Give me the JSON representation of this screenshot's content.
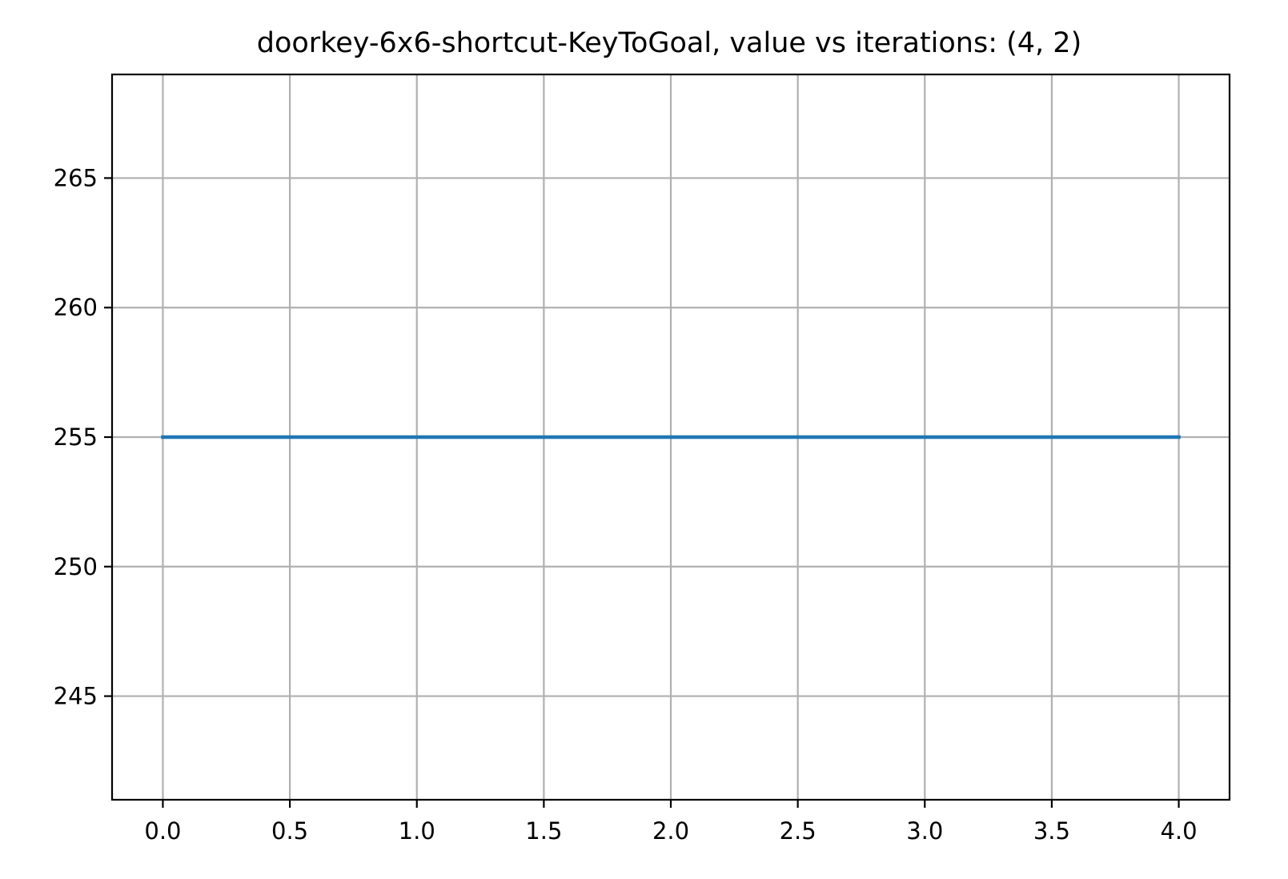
{
  "chart_data": {
    "type": "line",
    "title": "doorkey-6x6-shortcut-KeyToGoal, value vs iterations: (4, 2)",
    "xlabel": "",
    "ylabel": "",
    "xlim": [
      -0.2,
      4.2
    ],
    "ylim": [
      241,
      269
    ],
    "xticks": [
      0.0,
      0.5,
      1.0,
      1.5,
      2.0,
      2.5,
      3.0,
      3.5,
      4.0
    ],
    "xtick_labels": [
      "0.0",
      "0.5",
      "1.0",
      "1.5",
      "2.0",
      "2.5",
      "3.0",
      "3.5",
      "4.0"
    ],
    "yticks": [
      245,
      250,
      255,
      260,
      265
    ],
    "ytick_labels": [
      "245",
      "250",
      "255",
      "260",
      "265"
    ],
    "grid": true,
    "series": [
      {
        "color": "#1f77b4",
        "x": [
          0,
          1,
          2,
          3,
          4
        ],
        "y": [
          255,
          255,
          255,
          255,
          255
        ]
      }
    ]
  }
}
